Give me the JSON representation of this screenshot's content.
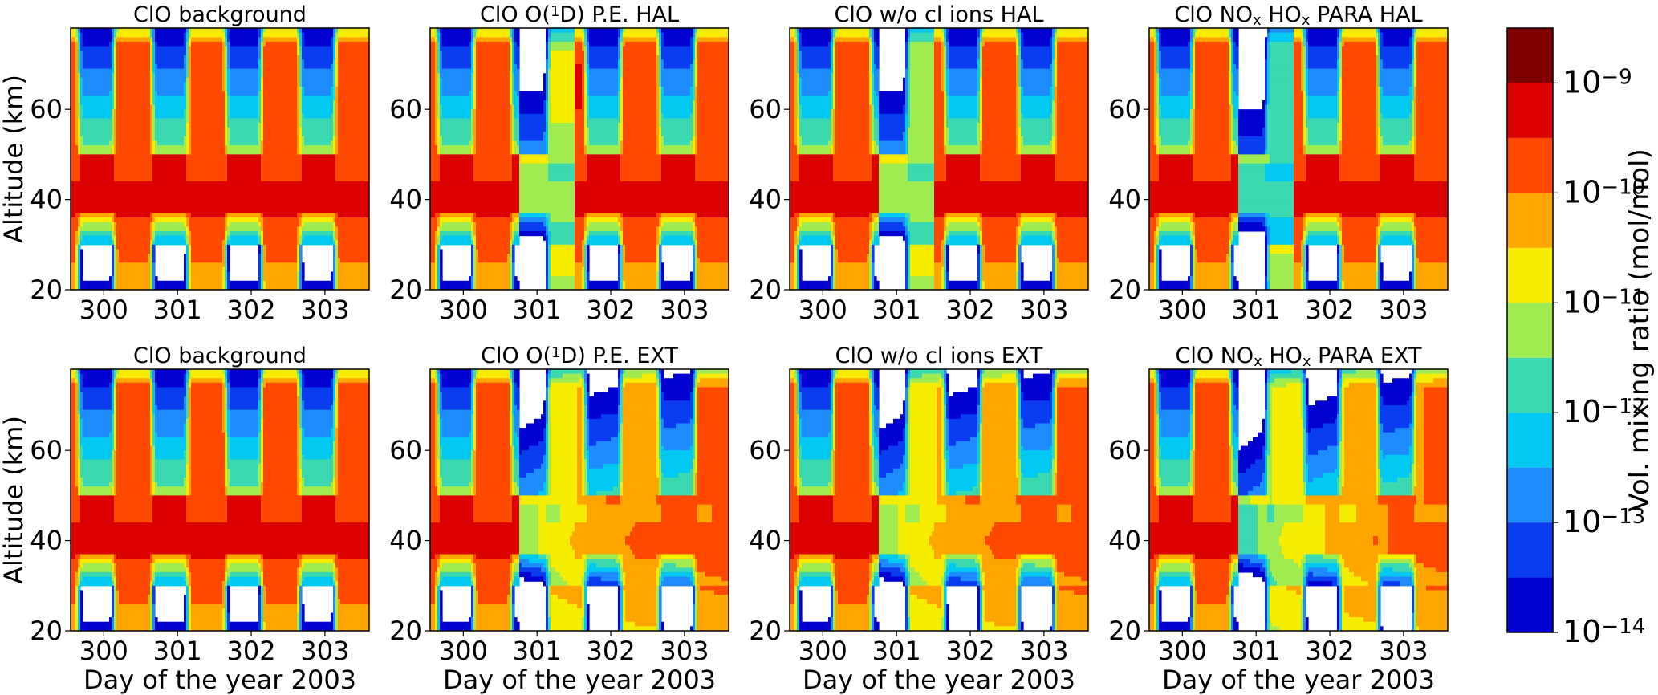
{
  "chart_data": {
    "type": "heatmap",
    "description_scale": "log",
    "panels": [
      {
        "title_parts": [
          "ClO background"
        ],
        "case": "background",
        "row": 0,
        "col": 0
      },
      {
        "title_parts": [
          "ClO O(",
          "1",
          "D) P.E. HAL"
        ],
        "case": "ode",
        "row": 0,
        "col": 1
      },
      {
        "title_parts": [
          "ClO w/o cl ions HAL"
        ],
        "case": "woions",
        "row": 0,
        "col": 2
      },
      {
        "title_parts": [
          "ClO NO",
          "x",
          " HO",
          "x",
          " PARA HAL"
        ],
        "case": "para",
        "row": 0,
        "col": 3
      },
      {
        "title_parts": [
          "ClO background"
        ],
        "case": "background",
        "row": 1,
        "col": 0
      },
      {
        "title_parts": [
          "ClO O(",
          "1",
          "D) P.E. EXT"
        ],
        "case": "ode_ext",
        "row": 1,
        "col": 1
      },
      {
        "title_parts": [
          "ClO w/o cl ions EXT"
        ],
        "case": "woions_ext",
        "row": 1,
        "col": 2
      },
      {
        "title_parts": [
          "ClO NO",
          "x",
          " HO",
          "x",
          " PARA EXT"
        ],
        "case": "para_ext",
        "row": 1,
        "col": 3
      }
    ],
    "x_ticks": [
      "300",
      "301",
      "302",
      "303"
    ],
    "x_tick_values": [
      300,
      301,
      302,
      303
    ],
    "xlim": [
      299.55,
      303.6
    ],
    "xlabel": "Day of the year 2003",
    "y_ticks": [
      "20",
      "40",
      "60"
    ],
    "y_tick_values": [
      20,
      40,
      60
    ],
    "ylim": [
      20,
      78
    ],
    "ylabel": "Altitude (km)",
    "colorbar": {
      "label": "Vol. mixing ratio (mol/mol)",
      "tick_exponents": [
        "-9",
        "-10",
        "-11",
        "-12",
        "-13",
        "-14"
      ],
      "tick_base": "10",
      "range_log10": [
        -14,
        -8.5
      ],
      "levels_log10": [
        -14,
        -13.5,
        -13,
        -12.5,
        -12,
        -11.5,
        -11,
        -10.5,
        -10,
        -9.5,
        -9,
        -8.5
      ],
      "colors": [
        "#0000d0",
        "#0a3cf0",
        "#1e8cff",
        "#00c8f0",
        "#3ad9b0",
        "#a0ec50",
        "#f5ec00",
        "#ffa500",
        "#ff4800",
        "#dc0000",
        "#800000"
      ]
    }
  }
}
